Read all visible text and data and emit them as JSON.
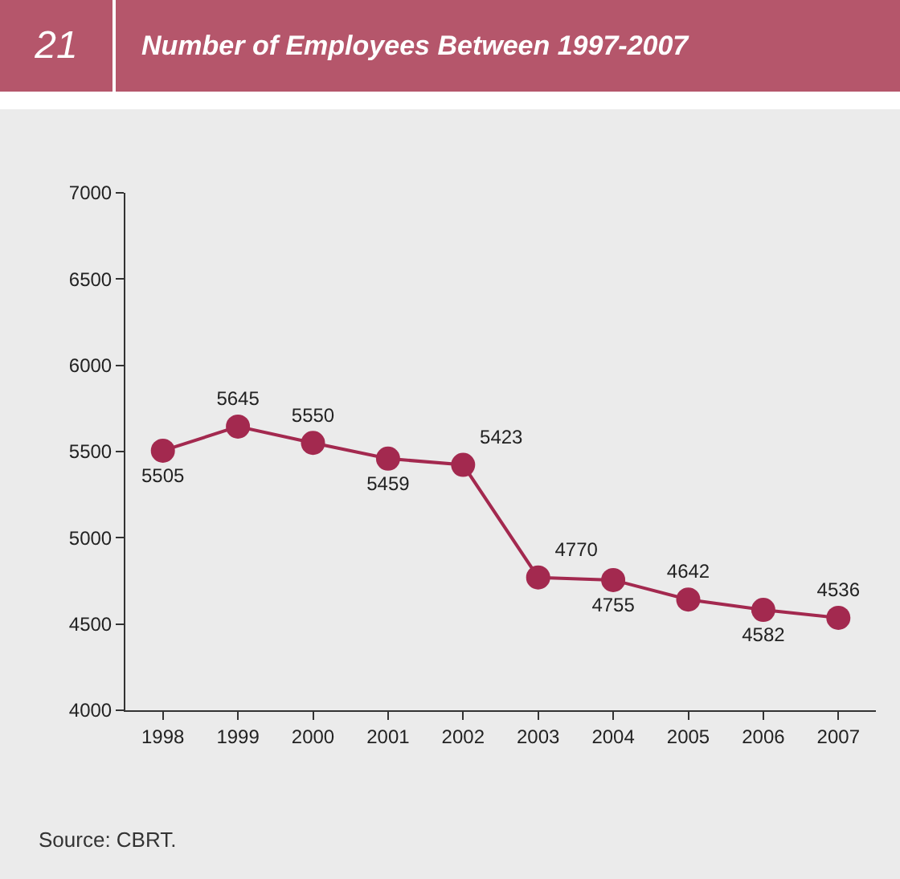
{
  "chart_data": {
    "type": "line",
    "title": "Number of Employees Between 1997-2007",
    "annotations": [
      "21",
      "Source: CBRT."
    ],
    "categories": [
      "1998",
      "1999",
      "2000",
      "2001",
      "2002",
      "2003",
      "2004",
      "2005",
      "2006",
      "2007"
    ],
    "series": [
      {
        "color": "#a3294f",
        "values": [
          5505,
          5645,
          5550,
          5459,
          5423,
          4770,
          4755,
          4642,
          4582,
          4536
        ]
      }
    ],
    "ylim": [
      4000,
      7000
    ],
    "yticks": [
      4000,
      4500,
      5000,
      5500,
      6000,
      6500,
      7000
    ],
    "grid": false,
    "marker": "circle",
    "line_style": "solid",
    "data_labels": true
  }
}
